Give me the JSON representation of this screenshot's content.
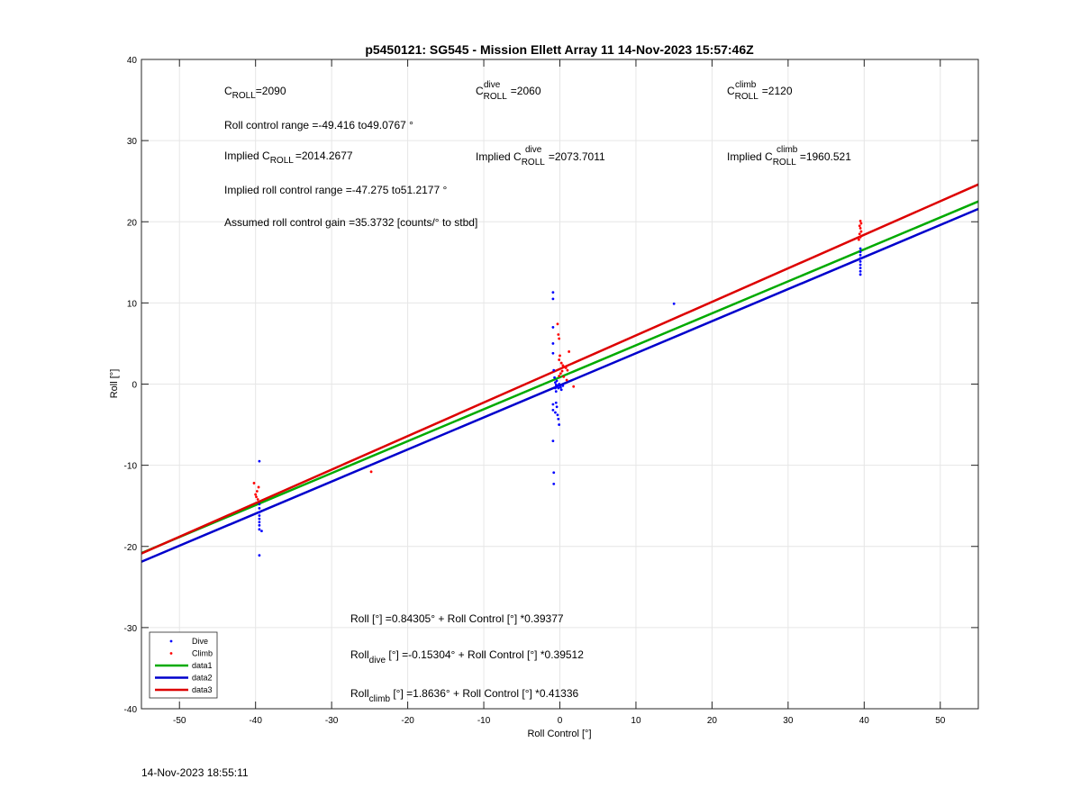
{
  "footer_timestamp": "14-Nov-2023 18:55:11",
  "annotations": {
    "c_roll": {
      "base": "C",
      "sub": "ROLL",
      "value": "=2090"
    },
    "c_roll_dive": {
      "base": "C",
      "sup": "dive",
      "sub": "ROLL",
      "value": "=2060"
    },
    "c_roll_climb": {
      "base": "C",
      "sup": "climb",
      "sub": "ROLL",
      "value": "=2120"
    },
    "roll_control_range": "Roll control range =-49.416 to49.0767 °",
    "implied_c_roll": {
      "prefix": "Implied ",
      "base": "C",
      "sub": "ROLL",
      "value": "=2014.2677"
    },
    "implied_c_roll_dive": {
      "prefix": "Implied ",
      "base": "C",
      "sup": "dive",
      "sub": "ROLL",
      "value": "=2073.7011"
    },
    "implied_c_roll_climb": {
      "prefix": "Implied ",
      "base": "C",
      "sup": "climb",
      "sub": "ROLL",
      "value": "=1960.521"
    },
    "implied_roll_control_range": "Implied roll control range =-47.275 to51.2177 °",
    "assumed_gain": "Assumed roll control gain =35.3732 [counts/° to stbd]",
    "fit_all": "Roll [°] =0.84305° + Roll Control [°] *0.39377",
    "fit_dive": {
      "base": "Roll",
      "sub": "dive",
      "rest": " [°] =-0.15304° + Roll Control [°] *0.39512"
    },
    "fit_climb": {
      "base": "Roll",
      "sub": "climb",
      "rest": " [°] =1.8636° + Roll Control [°] *0.41336"
    }
  },
  "chart_data": {
    "type": "scatter",
    "title": "p5450121: SG545 - Mission Ellett Array 11 14-Nov-2023 15:57:46Z",
    "xlabel": "Roll Control [°]",
    "ylabel": "Roll [°]",
    "xlim": [
      -55,
      55
    ],
    "ylim": [
      -40,
      40
    ],
    "xticks": [
      -50,
      -40,
      -30,
      -20,
      -10,
      0,
      10,
      20,
      30,
      40,
      50
    ],
    "yticks": [
      -40,
      -30,
      -20,
      -10,
      0,
      10,
      20,
      30,
      40
    ],
    "grid": true,
    "legend_position": "bottom-left",
    "series": [
      {
        "name": "Dive",
        "kind": "points",
        "color": "#0000ff",
        "points": [
          [
            -39.5,
            -9.5
          ],
          [
            -39.5,
            -14.8
          ],
          [
            -39.5,
            -15.3
          ],
          [
            -39.5,
            -15.8
          ],
          [
            -39.5,
            -16.2
          ],
          [
            -39.5,
            -16.6
          ],
          [
            -39.5,
            -17.0
          ],
          [
            -39.5,
            -17.4
          ],
          [
            -39.5,
            -17.9
          ],
          [
            -39.2,
            -18.1
          ],
          [
            -39.5,
            -21.1
          ],
          [
            -0.9,
            11.3
          ],
          [
            -0.9,
            10.5
          ],
          [
            -0.9,
            7.0
          ],
          [
            -0.9,
            5.0
          ],
          [
            -0.9,
            3.8
          ],
          [
            -0.8,
            1.7
          ],
          [
            -0.7,
            0.8
          ],
          [
            -0.6,
            0.2
          ],
          [
            -0.5,
            -0.1
          ],
          [
            -0.6,
            -0.5
          ],
          [
            -0.5,
            -0.9
          ],
          [
            -0.4,
            0.4
          ],
          [
            -0.3,
            -0.2
          ],
          [
            -0.2,
            -0.5
          ],
          [
            -0.1,
            0.0
          ],
          [
            0.1,
            -0.4
          ],
          [
            0.2,
            -0.7
          ],
          [
            0.4,
            -0.2
          ],
          [
            -0.9,
            -2.5
          ],
          [
            -0.9,
            -3.2
          ],
          [
            -0.6,
            -3.5
          ],
          [
            -0.5,
            -2.3
          ],
          [
            -0.4,
            -2.8
          ],
          [
            -0.3,
            -3.8
          ],
          [
            -0.2,
            -4.3
          ],
          [
            -0.1,
            -5.0
          ],
          [
            -0.9,
            -7.0
          ],
          [
            -0.8,
            -10.9
          ],
          [
            -0.8,
            -12.3
          ],
          [
            15.0,
            9.9
          ],
          [
            39.5,
            13.5
          ],
          [
            39.5,
            13.9
          ],
          [
            39.5,
            14.3
          ],
          [
            39.5,
            14.7
          ],
          [
            39.5,
            15.1
          ],
          [
            39.5,
            15.5
          ],
          [
            39.5,
            15.9
          ],
          [
            39.5,
            16.3
          ],
          [
            39.5,
            16.7
          ]
        ]
      },
      {
        "name": "Climb",
        "kind": "points",
        "color": "#ff0000",
        "points": [
          [
            -40.2,
            -12.2
          ],
          [
            -39.6,
            -12.7
          ],
          [
            -39.8,
            -13.2
          ],
          [
            -40.0,
            -13.6
          ],
          [
            -39.9,
            -13.9
          ],
          [
            -39.7,
            -14.2
          ],
          [
            -24.8,
            -10.8
          ],
          [
            -0.3,
            7.4
          ],
          [
            -0.2,
            6.1
          ],
          [
            -0.1,
            5.6
          ],
          [
            0.0,
            3.5
          ],
          [
            -0.1,
            3.0
          ],
          [
            0.2,
            2.6
          ],
          [
            0.4,
            2.3
          ],
          [
            0.6,
            2.1
          ],
          [
            0.8,
            2.0
          ],
          [
            1.0,
            1.7
          ],
          [
            0.3,
            1.6
          ],
          [
            0.1,
            1.3
          ],
          [
            -0.1,
            1.0
          ],
          [
            0.5,
            0.9
          ],
          [
            0.9,
            0.5
          ],
          [
            1.2,
            4.0
          ],
          [
            1.8,
            -0.3
          ],
          [
            39.3,
            17.8
          ],
          [
            39.5,
            18.1
          ],
          [
            39.4,
            18.5
          ],
          [
            39.6,
            18.8
          ],
          [
            39.5,
            19.2
          ],
          [
            39.4,
            19.5
          ],
          [
            39.6,
            19.8
          ],
          [
            39.5,
            20.1
          ]
        ]
      },
      {
        "name": "data1",
        "kind": "line",
        "color": "#00aa00",
        "x": [
          -55,
          55
        ],
        "y": [
          -20.815,
          22.501
        ]
      },
      {
        "name": "data2",
        "kind": "line",
        "color": "#0000cc",
        "x": [
          -55,
          55
        ],
        "y": [
          -21.885,
          21.579
        ]
      },
      {
        "name": "data3",
        "kind": "line",
        "color": "#dd0000",
        "x": [
          -55,
          55
        ],
        "y": [
          -20.871,
          24.598
        ]
      }
    ]
  }
}
